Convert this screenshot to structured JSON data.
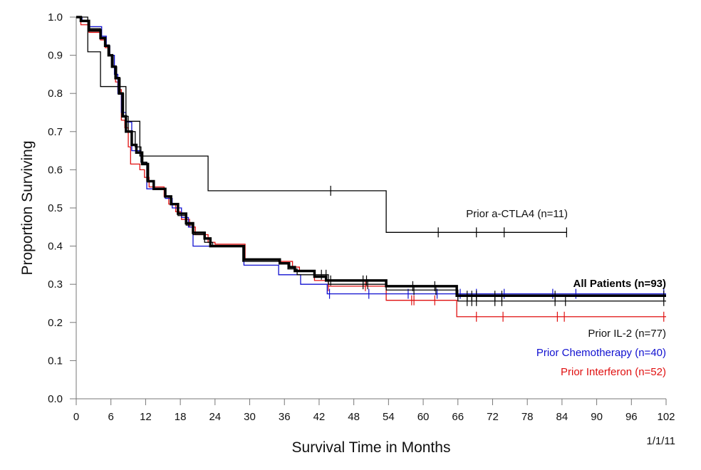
{
  "chart_data": {
    "type": "line",
    "subtype": "kaplan-meier step",
    "title": "",
    "xlabel": "Survival Time in Months",
    "ylabel": "Proportion Surviving",
    "xlim": [
      0,
      102
    ],
    "ylim": [
      0,
      1.0
    ],
    "x_ticks": [
      "0",
      "6",
      "12",
      "18",
      "24",
      "30",
      "36",
      "42",
      "48",
      "54",
      "60",
      "66",
      "72",
      "78",
      "84",
      "90",
      "96",
      "102"
    ],
    "y_ticks": [
      "0.0",
      "0.1",
      "0.2",
      "0.3",
      "0.4",
      "0.5",
      "0.6",
      "0.7",
      "0.8",
      "0.9",
      "1.0"
    ],
    "grid": false,
    "annotation": "1/1/11",
    "series": [
      {
        "name": "Prior Interferon (n=52)",
        "color": "#e01010",
        "label_color": "#e01010",
        "emphasis": "normal",
        "steps": [
          [
            0,
            1.0
          ],
          [
            0.8,
            0.98
          ],
          [
            2.2,
            0.96
          ],
          [
            4.2,
            0.94
          ],
          [
            5.0,
            0.92
          ],
          [
            5.6,
            0.9
          ],
          [
            6.2,
            0.87
          ],
          [
            6.8,
            0.83
          ],
          [
            7.2,
            0.81
          ],
          [
            7.8,
            0.73
          ],
          [
            8.4,
            0.71
          ],
          [
            9.0,
            0.66
          ],
          [
            9.4,
            0.615
          ],
          [
            11.0,
            0.6
          ],
          [
            11.8,
            0.58
          ],
          [
            12.6,
            0.555
          ],
          [
            15.2,
            0.53
          ],
          [
            16.0,
            0.51
          ],
          [
            17.2,
            0.49
          ],
          [
            18.2,
            0.47
          ],
          [
            19.6,
            0.45
          ],
          [
            20.6,
            0.43
          ],
          [
            22.8,
            0.41
          ],
          [
            24.0,
            0.405
          ],
          [
            29.2,
            0.365
          ],
          [
            35.0,
            0.36
          ],
          [
            37.4,
            0.345
          ],
          [
            38.6,
            0.335
          ],
          [
            41.2,
            0.31
          ],
          [
            43.6,
            0.295
          ],
          [
            53.6,
            0.258
          ],
          [
            65.8,
            0.215
          ],
          [
            102,
            0.215
          ]
        ],
        "censor_times": [
          43.6,
          50.0,
          58.0,
          58.4,
          62.0,
          69.2,
          73.8,
          83.2,
          84.4,
          101.6
        ]
      },
      {
        "name": "Prior Chemotherapy (n=40)",
        "color": "#1010d0",
        "label_color": "#1010d0",
        "emphasis": "normal",
        "steps": [
          [
            0,
            1.0
          ],
          [
            1.0,
            0.99
          ],
          [
            2.2,
            0.975
          ],
          [
            4.4,
            0.95
          ],
          [
            5.2,
            0.925
          ],
          [
            5.8,
            0.9
          ],
          [
            6.6,
            0.85
          ],
          [
            7.2,
            0.8
          ],
          [
            7.8,
            0.75
          ],
          [
            8.6,
            0.725
          ],
          [
            9.6,
            0.65
          ],
          [
            11.2,
            0.62
          ],
          [
            12.2,
            0.55
          ],
          [
            14.4,
            0.55
          ],
          [
            15.4,
            0.525
          ],
          [
            16.6,
            0.5
          ],
          [
            18.2,
            0.475
          ],
          [
            19.4,
            0.45
          ],
          [
            20.2,
            0.4
          ],
          [
            22.6,
            0.4
          ],
          [
            29.0,
            0.35
          ],
          [
            35.0,
            0.325
          ],
          [
            38.8,
            0.3
          ],
          [
            43.4,
            0.275
          ],
          [
            102,
            0.275
          ]
        ],
        "censor_times": [
          43.8,
          50.6,
          57.4,
          62.4,
          66.4,
          69.2,
          74.0,
          82.4,
          86.4,
          101.6
        ]
      },
      {
        "name": "Prior IL-2 (n=77)",
        "color": "#000000",
        "label_color": "#111111",
        "emphasis": "thin",
        "steps": [
          [
            0,
            1.0
          ],
          [
            0.8,
            0.99
          ],
          [
            2.2,
            0.97
          ],
          [
            4.2,
            0.945
          ],
          [
            5.0,
            0.925
          ],
          [
            5.8,
            0.9
          ],
          [
            6.4,
            0.87
          ],
          [
            7.0,
            0.84
          ],
          [
            7.6,
            0.8
          ],
          [
            8.2,
            0.74
          ],
          [
            9.0,
            0.7
          ],
          [
            10.2,
            0.66
          ],
          [
            11.2,
            0.62
          ],
          [
            12.2,
            0.57
          ],
          [
            13.4,
            0.55
          ],
          [
            15.4,
            0.53
          ],
          [
            16.4,
            0.51
          ],
          [
            17.6,
            0.48
          ],
          [
            19.0,
            0.455
          ],
          [
            20.2,
            0.43
          ],
          [
            22.2,
            0.41
          ],
          [
            23.6,
            0.4
          ],
          [
            28.8,
            0.36
          ],
          [
            35.2,
            0.355
          ],
          [
            36.6,
            0.34
          ],
          [
            38.2,
            0.325
          ],
          [
            43.6,
            0.3
          ],
          [
            53.6,
            0.285
          ],
          [
            66.0,
            0.256
          ],
          [
            102,
            0.256
          ]
        ],
        "censor_times": [
          42.4,
          43.2,
          49.6,
          50.4,
          58.4,
          62.2,
          67.6,
          68.4,
          69.2,
          72.4,
          73.6,
          82.8,
          84.6,
          101.6
        ]
      },
      {
        "name": "All Patients (n=93)",
        "color": "#000000",
        "label_color": "#000000",
        "emphasis": "bold",
        "steps": [
          [
            0,
            1.0
          ],
          [
            0.8,
            0.99
          ],
          [
            2.2,
            0.965
          ],
          [
            4.2,
            0.945
          ],
          [
            5.0,
            0.925
          ],
          [
            5.6,
            0.9
          ],
          [
            6.2,
            0.87
          ],
          [
            6.8,
            0.84
          ],
          [
            7.4,
            0.8
          ],
          [
            8.0,
            0.74
          ],
          [
            8.6,
            0.7
          ],
          [
            9.6,
            0.665
          ],
          [
            10.4,
            0.645
          ],
          [
            11.4,
            0.615
          ],
          [
            12.4,
            0.57
          ],
          [
            13.4,
            0.55
          ],
          [
            15.4,
            0.53
          ],
          [
            16.4,
            0.51
          ],
          [
            17.6,
            0.485
          ],
          [
            19.0,
            0.46
          ],
          [
            20.2,
            0.435
          ],
          [
            22.2,
            0.42
          ],
          [
            23.2,
            0.4
          ],
          [
            29.0,
            0.365
          ],
          [
            35.2,
            0.355
          ],
          [
            36.8,
            0.345
          ],
          [
            37.8,
            0.335
          ],
          [
            41.2,
            0.32
          ],
          [
            43.2,
            0.31
          ],
          [
            53.6,
            0.295
          ],
          [
            65.8,
            0.27
          ],
          [
            102,
            0.27
          ]
        ],
        "censor_times": [
          44.0,
          49.6,
          50.2,
          58.2,
          62.0,
          67.6,
          68.4,
          69.2,
          72.4,
          73.6,
          82.8,
          101.6
        ]
      },
      {
        "name": "Prior a-CTLA4 (n=11)",
        "color": "#000000",
        "label_color": "#111111",
        "emphasis": "thin",
        "steps": [
          [
            0,
            1.0
          ],
          [
            2.0,
            0.909
          ],
          [
            4.2,
            0.818
          ],
          [
            8.6,
            0.727
          ],
          [
            11.0,
            0.636
          ],
          [
            22.8,
            0.545
          ],
          [
            53.6,
            0.436
          ],
          [
            84.8,
            0.436
          ]
        ],
        "censor_times": [
          44.0,
          62.6,
          69.2,
          74.0,
          84.8
        ]
      }
    ]
  }
}
